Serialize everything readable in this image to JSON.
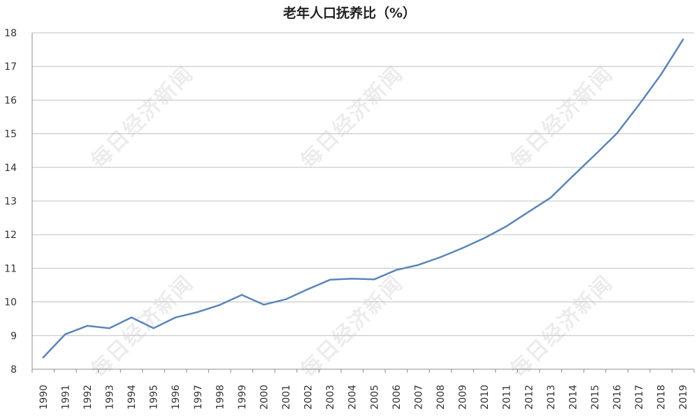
{
  "watermark": "每日经济新闻",
  "chart_data": {
    "type": "line",
    "title": "老年人口抚养比（%）",
    "xlabel": "",
    "ylabel": "",
    "ylim": [
      8,
      18
    ],
    "yticks": [
      "8",
      "9",
      "10",
      "11",
      "12",
      "13",
      "14",
      "15",
      "16",
      "17",
      "18"
    ],
    "grid": true,
    "line_color": "#5b85b8",
    "categories": [
      "1990",
      "1991",
      "1992",
      "1993",
      "1994",
      "1995",
      "1996",
      "1997",
      "1998",
      "1999",
      "2000",
      "2001",
      "2002",
      "2003",
      "2004",
      "2005",
      "2006",
      "2007",
      "2008",
      "2009",
      "2010",
      "2011",
      "2012",
      "2013",
      "2014",
      "2015",
      "2016",
      "2017",
      "2018",
      "2019"
    ],
    "series": [
      {
        "values": [
          8.35,
          9.04,
          9.29,
          9.22,
          9.54,
          9.22,
          9.54,
          9.7,
          9.91,
          10.21,
          9.92,
          10.08,
          10.38,
          10.66,
          10.69,
          10.67,
          10.95,
          11.1,
          11.33,
          11.6,
          11.9,
          12.25,
          12.68,
          13.1,
          13.74,
          14.37,
          15.01,
          15.86,
          16.76,
          17.8
        ]
      }
    ]
  }
}
